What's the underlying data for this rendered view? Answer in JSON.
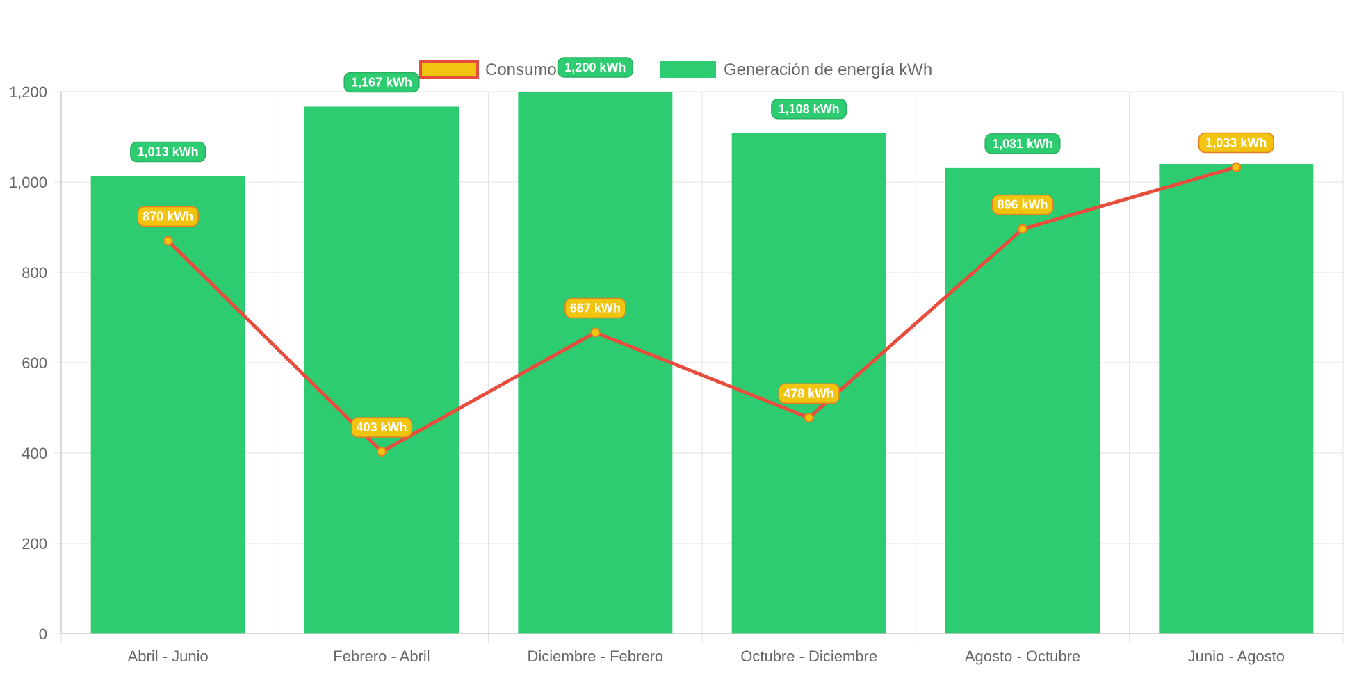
{
  "colors": {
    "bar_fill": "#2ecc71",
    "bar_label_fill": "#2ecc71",
    "bar_label_border": "#27ae60",
    "line_stroke": "#e74c3c",
    "point_fill": "#f1c40f",
    "point_label_fill": "#f1c40f",
    "point_label_border": "#e67e22",
    "grid": "#e0e0e0",
    "axis_text": "#666666"
  },
  "chart_data": {
    "type": "bar",
    "categories": [
      "Abril - Junio",
      "Febrero - Abril",
      "Diciembre - Febrero",
      "Octubre - Diciembre",
      "Agosto - Octubre",
      "Junio - Agosto"
    ],
    "series": [
      {
        "name": "Consumo kWh",
        "type": "line",
        "values": [
          870,
          403,
          667,
          478,
          896,
          1033
        ],
        "labels": [
          "870 kWh",
          "403 kWh",
          "667 kWh",
          "478 kWh",
          "896 kWh",
          "1,033 kWh"
        ]
      },
      {
        "name": "Generación de energía kWh",
        "type": "bar",
        "values": [
          1013,
          1167,
          1200,
          1108,
          1031,
          1040
        ],
        "labels": [
          "1,013 kWh",
          "1,167 kWh",
          "1,200 kWh",
          "1,108 kWh",
          "1,031 kWh",
          ""
        ]
      }
    ],
    "ylim": [
      0,
      1200
    ],
    "yticks": [
      0,
      200,
      400,
      600,
      800,
      1000,
      1200
    ],
    "ytick_labels": [
      "0",
      "200",
      "400",
      "600",
      "800",
      "1,000",
      "1,200"
    ],
    "grid": true,
    "legend_position": "top-center"
  }
}
